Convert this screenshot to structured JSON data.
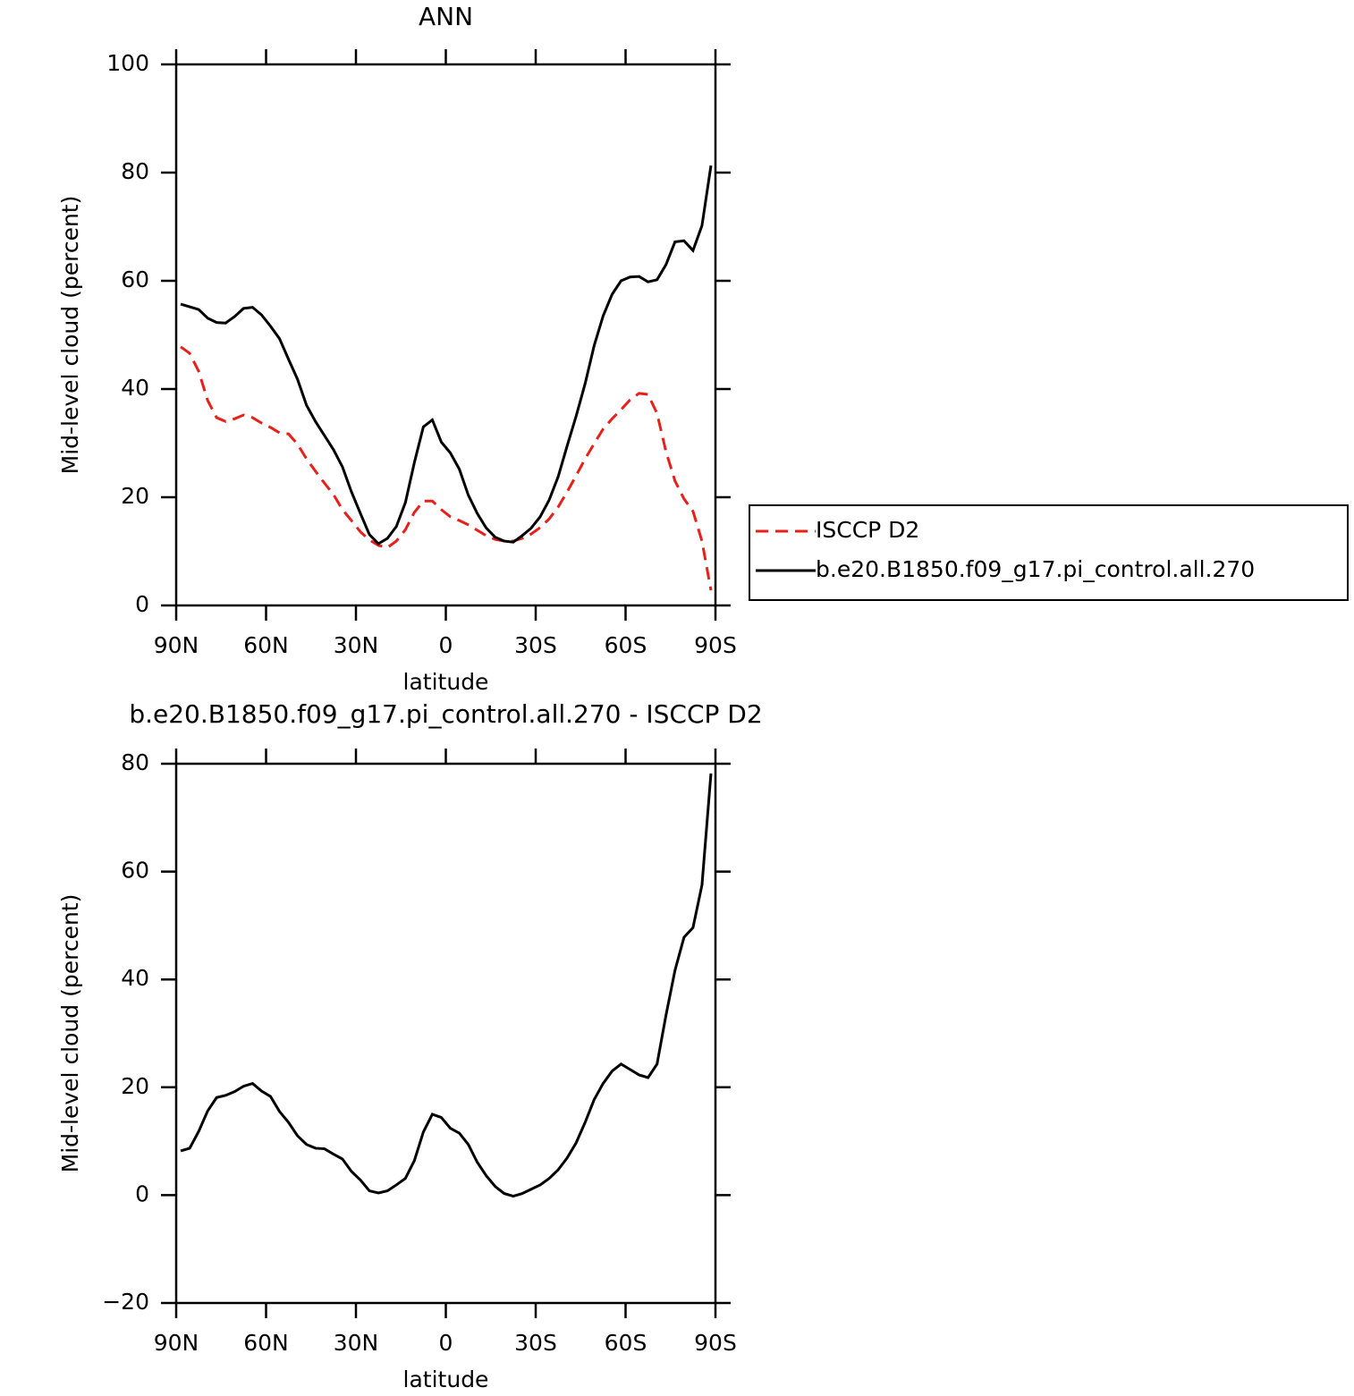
{
  "chart_data": [
    {
      "type": "line",
      "title": "ANN",
      "xlabel": "latitude",
      "ylabel": "Mid-level cloud (percent)",
      "x": [
        88.5,
        85.5,
        82.5,
        79.5,
        76.5,
        73.5,
        70.5,
        67.5,
        64.5,
        61.5,
        58.5,
        55.5,
        52.5,
        49.5,
        46.5,
        43.5,
        40.5,
        37.5,
        34.5,
        31.5,
        28.5,
        25.5,
        22.5,
        19.5,
        16.5,
        13.5,
        10.5,
        7.5,
        4.5,
        1.5,
        -1.5,
        -4.5,
        -7.5,
        -10.5,
        -13.5,
        -16.5,
        -19.5,
        -22.5,
        -25.5,
        -28.5,
        -31.5,
        -34.5,
        -37.5,
        -40.5,
        -43.5,
        -46.5,
        -49.5,
        -52.5,
        -55.5,
        -58.5,
        -61.5,
        -64.5,
        -67.5,
        -70.5,
        -73.5,
        -76.5,
        -79.5,
        -82.5,
        -85.5,
        -88.5
      ],
      "xlim": [
        90,
        -90
      ],
      "xticks": [
        {
          "value": 90,
          "label": "90N"
        },
        {
          "value": 60,
          "label": "60N"
        },
        {
          "value": 30,
          "label": "30N"
        },
        0,
        {
          "value": -30,
          "label": "30S"
        },
        {
          "value": -60,
          "label": "60S"
        },
        {
          "value": -90,
          "label": "90S"
        }
      ],
      "ylim": [
        0,
        100
      ],
      "yticks": [
        0,
        20,
        40,
        60,
        80,
        100
      ],
      "legend": "right",
      "series": [
        {
          "name": "ISCCP D2",
          "color": "#e8201a",
          "dash": true,
          "values": [
            47.8,
            46.6,
            43.3,
            37.9,
            34.7,
            34.0,
            34.5,
            35.2,
            34.7,
            33.7,
            32.9,
            31.9,
            31.7,
            29.8,
            27.1,
            24.8,
            22.6,
            20.5,
            17.7,
            15.7,
            13.6,
            12.1,
            11.1,
            10.7,
            11.9,
            14.0,
            17.2,
            19.3,
            19.3,
            17.7,
            16.4,
            15.7,
            14.9,
            13.9,
            12.9,
            12.2,
            11.9,
            11.9,
            12.4,
            13.2,
            14.4,
            16.0,
            18.2,
            21.0,
            24.0,
            27.1,
            29.9,
            32.6,
            34.5,
            36.2,
            38.0,
            39.2,
            39.0,
            35.5,
            28.4,
            23.0,
            19.7,
            17.4,
            11.9,
            2.8
          ]
        },
        {
          "name": "b.e20.B1850.f09_g17.pi_control.all.270",
          "color": "#000000",
          "dash": false,
          "values": [
            55.7,
            55.2,
            54.7,
            53.1,
            52.3,
            52.2,
            53.4,
            54.9,
            55.1,
            53.7,
            51.6,
            49.3,
            45.5,
            41.8,
            37.0,
            34.0,
            31.4,
            28.8,
            25.6,
            21.0,
            17.0,
            13.1,
            11.4,
            12.4,
            14.6,
            19.0,
            26.4,
            33.0,
            34.3,
            30.2,
            28.2,
            25.2,
            20.4,
            17.0,
            14.3,
            12.6,
            11.9,
            11.7,
            12.9,
            14.3,
            16.4,
            19.5,
            23.8,
            29.5,
            35.0,
            41.0,
            48.0,
            53.5,
            57.5,
            60.0,
            60.7,
            60.8,
            59.8,
            60.2,
            63.0,
            67.2,
            67.4,
            65.6,
            70.2,
            81.3
          ]
        }
      ]
    },
    {
      "type": "line",
      "title": "b.e20.B1850.f09_g17.pi_control.all.270 - ISCCP D2",
      "xlabel": "latitude",
      "ylabel": "Mid-level cloud (percent)",
      "x": [
        88.5,
        85.5,
        82.5,
        79.5,
        76.5,
        73.5,
        70.5,
        67.5,
        64.5,
        61.5,
        58.5,
        55.5,
        52.5,
        49.5,
        46.5,
        43.5,
        40.5,
        37.5,
        34.5,
        31.5,
        28.5,
        25.5,
        22.5,
        19.5,
        16.5,
        13.5,
        10.5,
        7.5,
        4.5,
        1.5,
        -1.5,
        -4.5,
        -7.5,
        -10.5,
        -13.5,
        -16.5,
        -19.5,
        -22.5,
        -25.5,
        -28.5,
        -31.5,
        -34.5,
        -37.5,
        -40.5,
        -43.5,
        -46.5,
        -49.5,
        -52.5,
        -55.5,
        -58.5,
        -61.5,
        -64.5,
        -67.5,
        -70.5,
        -73.5,
        -76.5,
        -79.5,
        -82.5,
        -85.5,
        -88.5
      ],
      "xlim": [
        90,
        -90
      ],
      "xticks": [
        {
          "value": 90,
          "label": "90N"
        },
        {
          "value": 60,
          "label": "60N"
        },
        {
          "value": 30,
          "label": "30N"
        },
        0,
        {
          "value": -30,
          "label": "30S"
        },
        {
          "value": -60,
          "label": "60S"
        },
        {
          "value": -90,
          "label": "90S"
        }
      ],
      "ylim": [
        -20,
        80
      ],
      "yticks": [
        {
          "value": -20,
          "label": "−20"
        },
        0,
        20,
        40,
        60,
        80
      ],
      "series": [
        {
          "color": "#000000",
          "dash": false,
          "values": [
            8.2,
            8.7,
            11.8,
            15.6,
            18.1,
            18.5,
            19.2,
            20.2,
            20.7,
            19.3,
            18.3,
            15.5,
            13.5,
            11.0,
            9.4,
            8.7,
            8.6,
            7.6,
            6.7,
            4.4,
            2.8,
            0.8,
            0.4,
            0.8,
            1.9,
            3.1,
            6.4,
            11.7,
            15.0,
            14.4,
            12.4,
            11.5,
            9.4,
            6.1,
            3.6,
            1.6,
            0.3,
            -0.2,
            0.3,
            1.1,
            1.9,
            3.1,
            4.7,
            6.9,
            9.7,
            13.5,
            17.7,
            20.7,
            23.0,
            24.3,
            23.3,
            22.3,
            21.8,
            24.3,
            33.4,
            41.7,
            47.8,
            49.6,
            57.5,
            78.2
          ]
        }
      ]
    }
  ]
}
